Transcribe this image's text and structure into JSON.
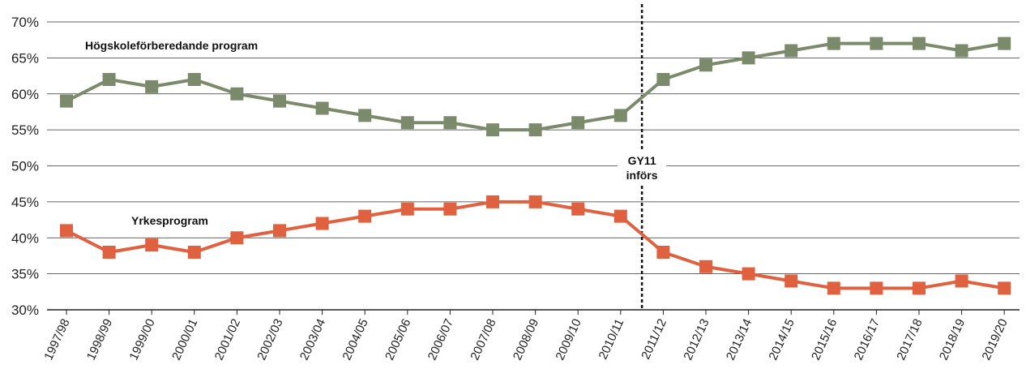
{
  "chart_data": {
    "type": "line",
    "title": "",
    "xlabel": "",
    "ylabel": "",
    "ylim": [
      30,
      70
    ],
    "yticks": [
      "30%",
      "35%",
      "40%",
      "45%",
      "50%",
      "55%",
      "60%",
      "65%",
      "70%"
    ],
    "grid": true,
    "categories": [
      "1997/98",
      "1998/99",
      "1999/00",
      "2000/01",
      "2001/02",
      "2002/03",
      "2003/04",
      "2004/05",
      "2005/06",
      "2006/07",
      "2007/08",
      "2008/09",
      "2009/10",
      "2010/11",
      "2011/12",
      "2012/13",
      "2013/14",
      "2014/15",
      "2015/16",
      "2016/17",
      "2017/18",
      "2018/19",
      "2019/20"
    ],
    "series": [
      {
        "name": "Högskoleförberedande program",
        "color": "#7a8a6a",
        "values": [
          59,
          62,
          61,
          62,
          60,
          59,
          58,
          57,
          56,
          56,
          55,
          55,
          56,
          57,
          62,
          64,
          65,
          66,
          67,
          67,
          67,
          66,
          67
        ]
      },
      {
        "name": "Yrkesprogram",
        "color": "#e0613f",
        "values": [
          41,
          38,
          39,
          38,
          40,
          41,
          42,
          43,
          44,
          44,
          45,
          45,
          44,
          43,
          38,
          36,
          35,
          34,
          33,
          33,
          33,
          34,
          33
        ]
      }
    ],
    "annotation": {
      "category": "2010/11",
      "line1": "GY11",
      "line2": "införs"
    }
  }
}
